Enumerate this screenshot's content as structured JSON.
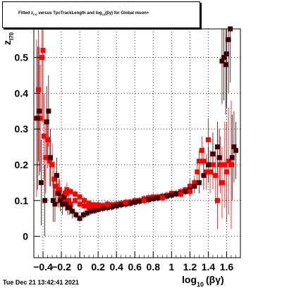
{
  "title": {
    "part1": "Fitted  z",
    "sub1": "I70",
    "part2": "  versus TpcTrackLength and log",
    "sub2": "10",
    "part3": "(βγ) for Global muon+"
  },
  "timestamp": "Tue Dec 21 13:42:41 2021",
  "chart_data": {
    "type": "scatter",
    "title": "Fitted z_I70 versus TpcTrackLength and log10(βγ) for Global muon+",
    "xlabel": "log₁₀(βγ)",
    "xlabel_main": "log",
    "xlabel_sub": "10",
    "xlabel_tail": "(βγ)",
    "ylabel": "z",
    "ylabel_sub": "I70",
    "xlim": [
      -0.5,
      1.75
    ],
    "ylim": [
      -0.06,
      0.58
    ],
    "xticks": [
      {
        "v": -0.4,
        "label": "−0.4"
      },
      {
        "v": -0.2,
        "label": "−0.2"
      },
      {
        "v": 0,
        "label": "0"
      },
      {
        "v": 0.2,
        "label": "0.2"
      },
      {
        "v": 0.4,
        "label": "0.4"
      },
      {
        "v": 0.6,
        "label": "0.6"
      },
      {
        "v": 0.8,
        "label": "0.8"
      },
      {
        "v": 1,
        "label": "1"
      },
      {
        "v": 1.2,
        "label": "1.2"
      },
      {
        "v": 1.4,
        "label": "1.4"
      },
      {
        "v": 1.6,
        "label": "1.6"
      }
    ],
    "yticks": [
      {
        "v": 0,
        "label": "0"
      },
      {
        "v": 0.1,
        "label": "0.1"
      },
      {
        "v": 0.2,
        "label": "0.2"
      },
      {
        "v": 0.3,
        "label": "0.3"
      },
      {
        "v": 0.4,
        "label": "0.4"
      },
      {
        "v": 0.5,
        "label": "0.5"
      }
    ],
    "grid": true,
    "colors": {
      "red": "#ff0000",
      "dark": "#3a0000",
      "black": "#000000"
    },
    "series": [
      {
        "color": "red",
        "points": [
          [
            -0.47,
            0.33,
            0.22
          ],
          [
            -0.45,
            0.41,
            0.2
          ],
          [
            -0.43,
            0.33,
            0.15
          ],
          [
            -0.41,
            0.5,
            0.18
          ],
          [
            -0.4,
            0.52,
            0.2
          ],
          [
            -0.39,
            0.28,
            0.12
          ],
          [
            -0.37,
            0.22,
            0.1
          ],
          [
            -0.35,
            0.27,
            0.08
          ],
          [
            -0.33,
            0.21,
            0.07
          ],
          [
            -0.3,
            0.2,
            0.06
          ],
          [
            -0.28,
            0.16,
            0.05
          ],
          [
            -0.26,
            0.14,
            0.04
          ],
          [
            -0.24,
            0.12,
            0.03
          ],
          [
            -0.22,
            0.13,
            0.03
          ],
          [
            -0.2,
            0.11,
            0.02
          ],
          [
            -0.18,
            0.1,
            0.02
          ],
          [
            -0.16,
            0.12,
            0.02
          ],
          [
            -0.14,
            0.13,
            0.02
          ],
          [
            -0.12,
            0.1,
            0.02
          ],
          [
            -0.1,
            0.09,
            0.02
          ],
          [
            -0.05,
            0.1,
            0.01
          ],
          [
            0,
            0.09,
            0.01
          ],
          [
            0.05,
            0.085,
            0.01
          ],
          [
            0.1,
            0.08,
            0.01
          ],
          [
            0.15,
            0.085,
            0.01
          ],
          [
            0.2,
            0.088,
            0.01
          ],
          [
            0.25,
            0.086,
            0.01
          ],
          [
            0.3,
            0.09,
            0.01
          ],
          [
            0.35,
            0.088,
            0.01
          ],
          [
            0.4,
            0.09,
            0.01
          ],
          [
            0.45,
            0.092,
            0.01
          ],
          [
            0.5,
            0.094,
            0.01
          ],
          [
            0.55,
            0.096,
            0.01
          ],
          [
            0.6,
            0.1,
            0.01
          ],
          [
            0.65,
            0.1,
            0.01
          ],
          [
            0.7,
            0.105,
            0.01
          ],
          [
            0.75,
            0.108,
            0.01
          ],
          [
            0.8,
            0.11,
            0.01
          ],
          [
            0.85,
            0.11,
            0.01
          ],
          [
            0.9,
            0.112,
            0.01
          ],
          [
            0.95,
            0.115,
            0.01
          ],
          [
            1,
            0.12,
            0.01
          ],
          [
            1.05,
            0.12,
            0.01
          ],
          [
            1.1,
            0.125,
            0.01
          ],
          [
            1.15,
            0.13,
            0.01
          ],
          [
            1.2,
            0.14,
            0.02
          ],
          [
            1.25,
            0.15,
            0.02
          ],
          [
            1.28,
            0.18,
            0.03
          ],
          [
            1.3,
            0.21,
            0.03
          ],
          [
            1.33,
            0.24,
            0.04
          ],
          [
            1.35,
            0.21,
            0.04
          ],
          [
            1.38,
            0.18,
            0.05
          ],
          [
            1.4,
            0.27,
            0.06
          ],
          [
            1.42,
            0.18,
            0.06
          ],
          [
            1.45,
            0.2,
            0.07
          ],
          [
            1.48,
            0.17,
            0.08
          ],
          [
            1.5,
            0.1,
            0.08
          ],
          [
            1.53,
            0.2,
            0.08
          ],
          [
            1.55,
            0.15,
            0.1
          ],
          [
            1.58,
            0.2,
            0.12
          ],
          [
            1.6,
            0.18,
            0.14
          ],
          [
            1.62,
            0.21,
            0.15
          ],
          [
            1.65,
            0.2,
            0.18
          ]
        ]
      },
      {
        "color": "dark",
        "points": [
          [
            -0.46,
            0.33,
            0.2
          ],
          [
            -0.44,
            0.35,
            0.18
          ],
          [
            -0.42,
            0.15,
            0.12
          ],
          [
            -0.38,
            0.1,
            0.1
          ],
          [
            -0.36,
            0.32,
            0.1
          ],
          [
            -0.34,
            0.35,
            0.1
          ],
          [
            -0.32,
            0.22,
            0.08
          ],
          [
            -0.29,
            0.1,
            0.06
          ],
          [
            -0.27,
            0.09,
            0.05
          ],
          [
            -0.25,
            0.17,
            0.05
          ],
          [
            -0.23,
            0.12,
            0.04
          ],
          [
            -0.21,
            0.1,
            0.03
          ],
          [
            -0.19,
            0.09,
            0.03
          ],
          [
            -0.17,
            0.11,
            0.02
          ],
          [
            -0.15,
            0.09,
            0.02
          ],
          [
            -0.13,
            0.08,
            0.02
          ],
          [
            -0.11,
            0.08,
            0.02
          ],
          [
            -0.08,
            0.07,
            0.02
          ],
          [
            -0.04,
            0.06,
            0.01
          ],
          [
            0,
            0.05,
            0.01
          ],
          [
            0.04,
            0.06,
            0.01
          ],
          [
            0.08,
            0.065,
            0.01
          ],
          [
            0.12,
            0.07,
            0.01
          ],
          [
            0.16,
            0.072,
            0.01
          ],
          [
            0.2,
            0.075,
            0.01
          ],
          [
            0.25,
            0.078,
            0.01
          ],
          [
            0.3,
            0.08,
            0.01
          ],
          [
            0.35,
            0.082,
            0.01
          ],
          [
            0.4,
            0.085,
            0.01
          ],
          [
            0.45,
            0.088,
            0.01
          ],
          [
            0.5,
            0.09,
            0.01
          ],
          [
            0.55,
            0.092,
            0.01
          ],
          [
            0.6,
            0.095,
            0.01
          ],
          [
            0.65,
            0.098,
            0.01
          ],
          [
            0.7,
            0.1,
            0.01
          ],
          [
            0.75,
            0.102,
            0.01
          ],
          [
            0.8,
            0.105,
            0.01
          ],
          [
            0.85,
            0.107,
            0.01
          ],
          [
            0.9,
            0.11,
            0.01
          ],
          [
            0.95,
            0.112,
            0.01
          ],
          [
            1,
            0.115,
            0.01
          ],
          [
            1.05,
            0.118,
            0.01
          ],
          [
            1.1,
            0.12,
            0.01
          ],
          [
            1.15,
            0.125,
            0.01
          ],
          [
            1.2,
            0.13,
            0.02
          ],
          [
            1.25,
            0.14,
            0.02
          ],
          [
            1.3,
            0.15,
            0.03
          ],
          [
            1.35,
            0.17,
            0.04
          ],
          [
            1.4,
            0.2,
            0.05
          ],
          [
            1.45,
            0.23,
            0.06
          ],
          [
            1.5,
            0.25,
            0.07
          ],
          [
            1.52,
            0.22,
            0.08
          ],
          [
            1.55,
            0.49,
            0.12
          ],
          [
            1.57,
            0.5,
            0.12
          ],
          [
            1.59,
            0.48,
            0.14
          ],
          [
            1.6,
            0.51,
            0.15
          ],
          [
            1.62,
            0.55,
            0.15
          ],
          [
            1.64,
            0.58,
            0.15
          ],
          [
            1.66,
            0.22,
            0.12
          ],
          [
            1.68,
            0.25,
            0.1
          ],
          [
            1.7,
            0.24,
            0.08
          ]
        ]
      },
      {
        "color": "red",
        "points": [
          [
            -0.14,
            0.12,
            0.01
          ],
          [
            -0.1,
            0.125,
            0.01
          ],
          [
            -0.05,
            0.118,
            0.01
          ],
          [
            0,
            0.11,
            0.01
          ],
          [
            0.05,
            0.1,
            0.01
          ],
          [
            0.1,
            0.092,
            0.01
          ],
          [
            0.15,
            0.088,
            0.01
          ],
          [
            0.2,
            0.086,
            0.01
          ],
          [
            0.3,
            0.088,
            0.01
          ],
          [
            0.5,
            0.095,
            0.01
          ],
          [
            0.7,
            0.1,
            0.01
          ],
          [
            0.9,
            0.108,
            0.01
          ],
          [
            1.1,
            0.118,
            0.01
          ],
          [
            1.2,
            0.125,
            0.01
          ]
        ]
      }
    ]
  }
}
